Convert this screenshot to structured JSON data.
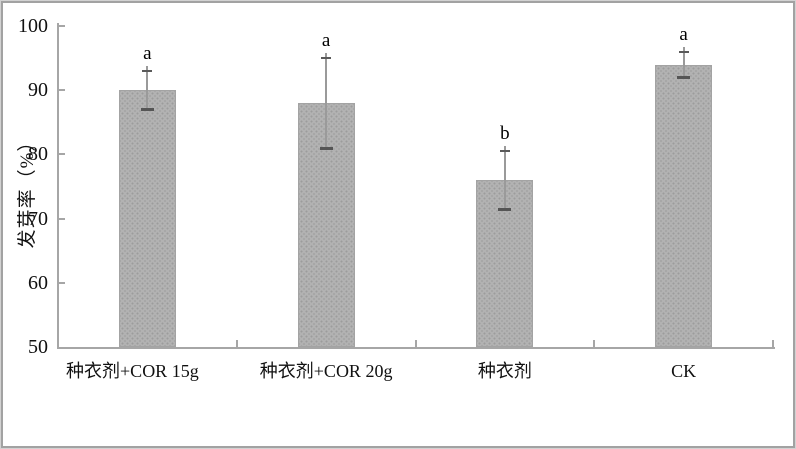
{
  "chart_data": {
    "type": "bar",
    "title": "",
    "xlabel": "",
    "ylabel": "发芽率（%）",
    "categories": [
      "种衣剂+COR 15g",
      "种衣剂+COR 20g",
      "种衣剂",
      "CK"
    ],
    "values": [
      90,
      88,
      76,
      94
    ],
    "error_plus": [
      3,
      7,
      4.5,
      2
    ],
    "error_minus": [
      3,
      7,
      4.5,
      2
    ],
    "sig_letters": [
      "a",
      "a",
      "b",
      "a"
    ],
    "ylim": [
      50,
      100
    ],
    "yticks": [
      50,
      60,
      70,
      80,
      90,
      100
    ],
    "grid": "off",
    "legend": "none",
    "colors": {
      "bar_fill": "#b2b2b2",
      "bar_stipple": "#9c9c9c",
      "bar_border": "#a3a3a3",
      "axis": "#a6a6a6",
      "error_line": "#9a9a9a",
      "error_cap": "#555555",
      "text": "#111111",
      "frame": "#a2a2a2",
      "background": "#ffffff"
    }
  }
}
